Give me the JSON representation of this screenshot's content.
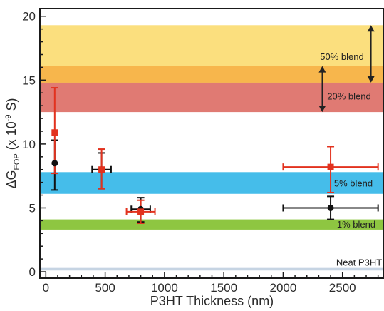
{
  "chart_data": {
    "type": "scatter",
    "title": "",
    "xlabel": "P3HT Thickness (nm)",
    "ylabel_parts": {
      "main": "ΔG",
      "sub": "EOP",
      "rest": " (x 10",
      "sup": "-9",
      "end": " S)"
    },
    "xlim": [
      -50,
      2850
    ],
    "ylim": [
      -0.5,
      20.6
    ],
    "xticks": [
      0,
      500,
      1000,
      1500,
      2000,
      2500
    ],
    "yticks": [
      0,
      5,
      10,
      15,
      20
    ],
    "grid": false,
    "bands": [
      {
        "label": "50% blend",
        "y0": 14.8,
        "y1": 19.3,
        "color": "#fbdf7e"
      },
      {
        "label": "",
        "y0": 14.8,
        "y1": 16.1,
        "color": "#f7b64c"
      },
      {
        "label": "20% blend",
        "y0": 12.5,
        "y1": 14.8,
        "color": "#e07a73"
      },
      {
        "label": "5% blend",
        "y0": 6.1,
        "y1": 7.8,
        "color": "#45bdea"
      },
      {
        "label": "1% blend",
        "y0": 3.3,
        "y1": 4.1,
        "color": "#8ec641"
      },
      {
        "label": "Neat P3HT",
        "y0": 0.1,
        "y1": 0.3,
        "color": "#c6d4e3"
      }
    ],
    "arrows": [
      {
        "x": 2740,
        "y0": 19.3,
        "y1": 14.8
      },
      {
        "x": 2330,
        "y0": 16.1,
        "y1": 12.5
      }
    ],
    "series": [
      {
        "marker": "circle",
        "color": "#111111",
        "points": [
          {
            "x": 75,
            "y": 8.5,
            "xerr": 0,
            "yerr": [
              2.1,
              1.8
            ]
          },
          {
            "x": 470,
            "y": 8.0,
            "xerr": 80,
            "yerr": [
              1.5,
              1.3
            ]
          },
          {
            "x": 800,
            "y": 4.9,
            "xerr": 80,
            "yerr": [
              1.0,
              0.9
            ]
          },
          {
            "x": 2400,
            "y": 5.0,
            "xerr": 400,
            "yerr": [
              0.9,
              0.9
            ]
          }
        ]
      },
      {
        "marker": "square",
        "color": "#e2321e",
        "points": [
          {
            "x": 75,
            "y": 10.9,
            "xerr": 0,
            "yerr": [
              3.2,
              3.5
            ]
          },
          {
            "x": 470,
            "y": 8.0,
            "xerr": 0,
            "yerr": [
              1.5,
              1.6
            ]
          },
          {
            "x": 800,
            "y": 4.7,
            "xerr": 120,
            "yerr": [
              0.9,
              0.9
            ]
          },
          {
            "x": 2400,
            "y": 8.2,
            "xerr": 400,
            "yerr": [
              2.0,
              1.6
            ]
          }
        ]
      }
    ]
  }
}
